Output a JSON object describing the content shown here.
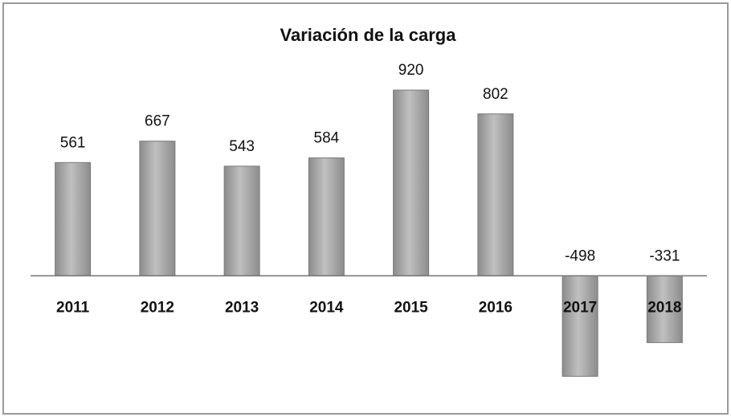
{
  "chart_data": {
    "type": "bar",
    "title": "Variación de la carga",
    "categories": [
      "2011",
      "2012",
      "2013",
      "2014",
      "2015",
      "2016",
      "2017",
      "2018"
    ],
    "values": [
      561,
      667,
      543,
      584,
      920,
      802,
      -498,
      -331
    ],
    "color": "#8c8c8c",
    "ylim": [
      -600,
      1000
    ]
  }
}
